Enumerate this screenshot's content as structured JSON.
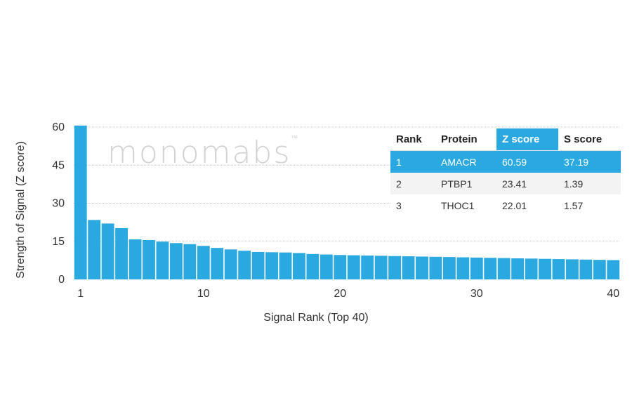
{
  "chart_data": {
    "type": "bar",
    "xlabel": "Signal Rank (Top 40)",
    "ylabel": "Strength of Signal (Z score)",
    "ylim": [
      0,
      60
    ],
    "yticks": [
      0,
      15,
      30,
      45,
      60
    ],
    "xticks": [
      1,
      10,
      20,
      30,
      40
    ],
    "grid": true,
    "categories": [
      1,
      2,
      3,
      4,
      5,
      6,
      7,
      8,
      9,
      10,
      11,
      12,
      13,
      14,
      15,
      16,
      17,
      18,
      19,
      20,
      21,
      22,
      23,
      24,
      25,
      26,
      27,
      28,
      29,
      30,
      31,
      32,
      33,
      34,
      35,
      36,
      37,
      38,
      39,
      40
    ],
    "values": [
      60.59,
      23.41,
      22.01,
      20.2,
      15.8,
      15.5,
      14.9,
      14.3,
      13.9,
      13.2,
      12.4,
      11.8,
      11.3,
      10.8,
      10.7,
      10.6,
      10.4,
      10.0,
      9.8,
      9.6,
      9.5,
      9.4,
      9.3,
      9.2,
      9.1,
      9.0,
      8.9,
      8.8,
      8.7,
      8.6,
      8.5,
      8.4,
      8.3,
      8.2,
      8.1,
      8.0,
      7.9,
      7.8,
      7.7,
      7.6
    ],
    "bar_color": "#2aa8e0"
  },
  "watermark": {
    "text": "monomabs",
    "mark": "™"
  },
  "table": {
    "headers": [
      "Rank",
      "Protein",
      "Z score",
      "S score"
    ],
    "rows": [
      [
        "1",
        "AMACR",
        "60.59",
        "37.19"
      ],
      [
        "2",
        "PTBP1",
        "23.41",
        "1.39"
      ],
      [
        "3",
        "THOC1",
        "22.01",
        "1.57"
      ]
    ],
    "highlight_color": "#2aa8e0"
  }
}
